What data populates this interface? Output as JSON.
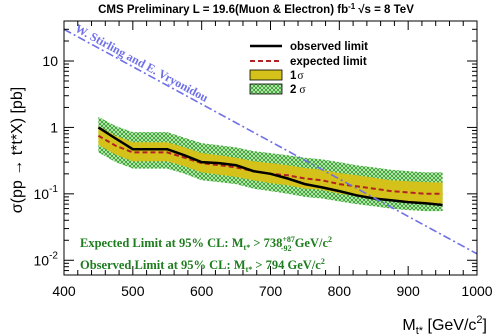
{
  "chart_data": {
    "type": "line",
    "title": "CMS Preliminary  L = 19.6(Muon & Electron) fb",
    "title_sup": "-1",
    "title_energy": "√s = 8 TeV",
    "xlabel": "M",
    "xlabel_sub": "t*",
    "xlabel_unit": " [GeV/c",
    "xlabel_unit_sup": "2",
    "xlabel_unit_close": "]",
    "ylabel": "σ(pp → t*t*X) [pb]",
    "xlim": [
      400,
      1000
    ],
    "ylim": [
      0.006,
      40
    ],
    "yscale": "log",
    "grid": false,
    "legend_position": "top-right",
    "x_ticks": [
      "400",
      "500",
      "600",
      "700",
      "800",
      "900",
      "1000"
    ],
    "y_ticks": [
      {
        "base": "10",
        "exp": "-2",
        "value": 0.01
      },
      {
        "base": "10",
        "exp": "-1",
        "value": 0.1
      },
      {
        "base": "1",
        "exp": "",
        "value": 1
      },
      {
        "base": "10",
        "exp": "",
        "value": 10
      }
    ],
    "legend": {
      "observed": "observed limit",
      "expected": "expected limit",
      "band1_sym": "1",
      "band1_sigma": "σ",
      "band2_sym": "2",
      "band2_sigma": "σ"
    },
    "x": [
      450,
      475,
      500,
      525,
      550,
      575,
      600,
      625,
      650,
      675,
      700,
      725,
      750,
      775,
      800,
      825,
      850,
      875,
      900,
      925,
      950
    ],
    "series": [
      {
        "name": "observed limit",
        "values": [
          1.0,
          0.68,
          0.47,
          0.47,
          0.47,
          0.38,
          0.3,
          0.29,
          0.27,
          0.22,
          0.2,
          0.17,
          0.14,
          0.125,
          0.11,
          0.095,
          0.085,
          0.08,
          0.075,
          0.072,
          0.068
        ]
      },
      {
        "name": "expected limit",
        "values": [
          0.75,
          0.53,
          0.42,
          0.42,
          0.42,
          0.35,
          0.29,
          0.27,
          0.25,
          0.22,
          0.2,
          0.19,
          0.17,
          0.16,
          0.14,
          0.13,
          0.12,
          0.11,
          0.105,
          0.1,
          0.1
        ]
      }
    ],
    "bands": {
      "one_sigma": {
        "lower": [
          0.55,
          0.39,
          0.31,
          0.31,
          0.31,
          0.26,
          0.21,
          0.195,
          0.18,
          0.16,
          0.145,
          0.135,
          0.12,
          0.115,
          0.1,
          0.093,
          0.085,
          0.078,
          0.075,
          0.072,
          0.072
        ],
        "upper": [
          1.05,
          0.75,
          0.6,
          0.6,
          0.6,
          0.5,
          0.41,
          0.38,
          0.35,
          0.31,
          0.29,
          0.27,
          0.245,
          0.23,
          0.205,
          0.19,
          0.175,
          0.16,
          0.155,
          0.15,
          0.148
        ]
      },
      "two_sigma": {
        "lower": [
          0.42,
          0.3,
          0.24,
          0.24,
          0.24,
          0.2,
          0.16,
          0.15,
          0.14,
          0.12,
          0.11,
          0.1,
          0.09,
          0.085,
          0.077,
          0.07,
          0.065,
          0.06,
          0.057,
          0.055,
          0.055
        ],
        "upper": [
          1.45,
          1.05,
          0.85,
          0.85,
          0.85,
          0.7,
          0.58,
          0.54,
          0.5,
          0.44,
          0.41,
          0.38,
          0.35,
          0.33,
          0.3,
          0.27,
          0.25,
          0.23,
          0.22,
          0.21,
          0.21
        ]
      }
    },
    "theory": {
      "label": "W. Stirling and E. Vryonidou",
      "x": [
        400,
        1000
      ],
      "values": [
        30,
        0.0125
      ]
    },
    "annotations": {
      "expected": {
        "pre": "Expected Limit at 95% CL: M",
        "sub": "t*",
        "mid": " > 738",
        "sup_hi": "+87",
        "sup_lo": "-92",
        "post": " GeV/c",
        "post_sup": "2"
      },
      "observed": {
        "pre": "Observed Limit at 95% CL: M",
        "sub": "t*",
        "mid": " > 794 GeV/c",
        "post_sup": "2"
      }
    },
    "colors": {
      "observed": "#000000",
      "expected": "#b22222",
      "band1": "#d4c21a",
      "band2": "#2aa02a",
      "band2_bg": "#d8f0c8",
      "theory": "#6f6fe8",
      "annotation": "#1e7d1e"
    }
  }
}
